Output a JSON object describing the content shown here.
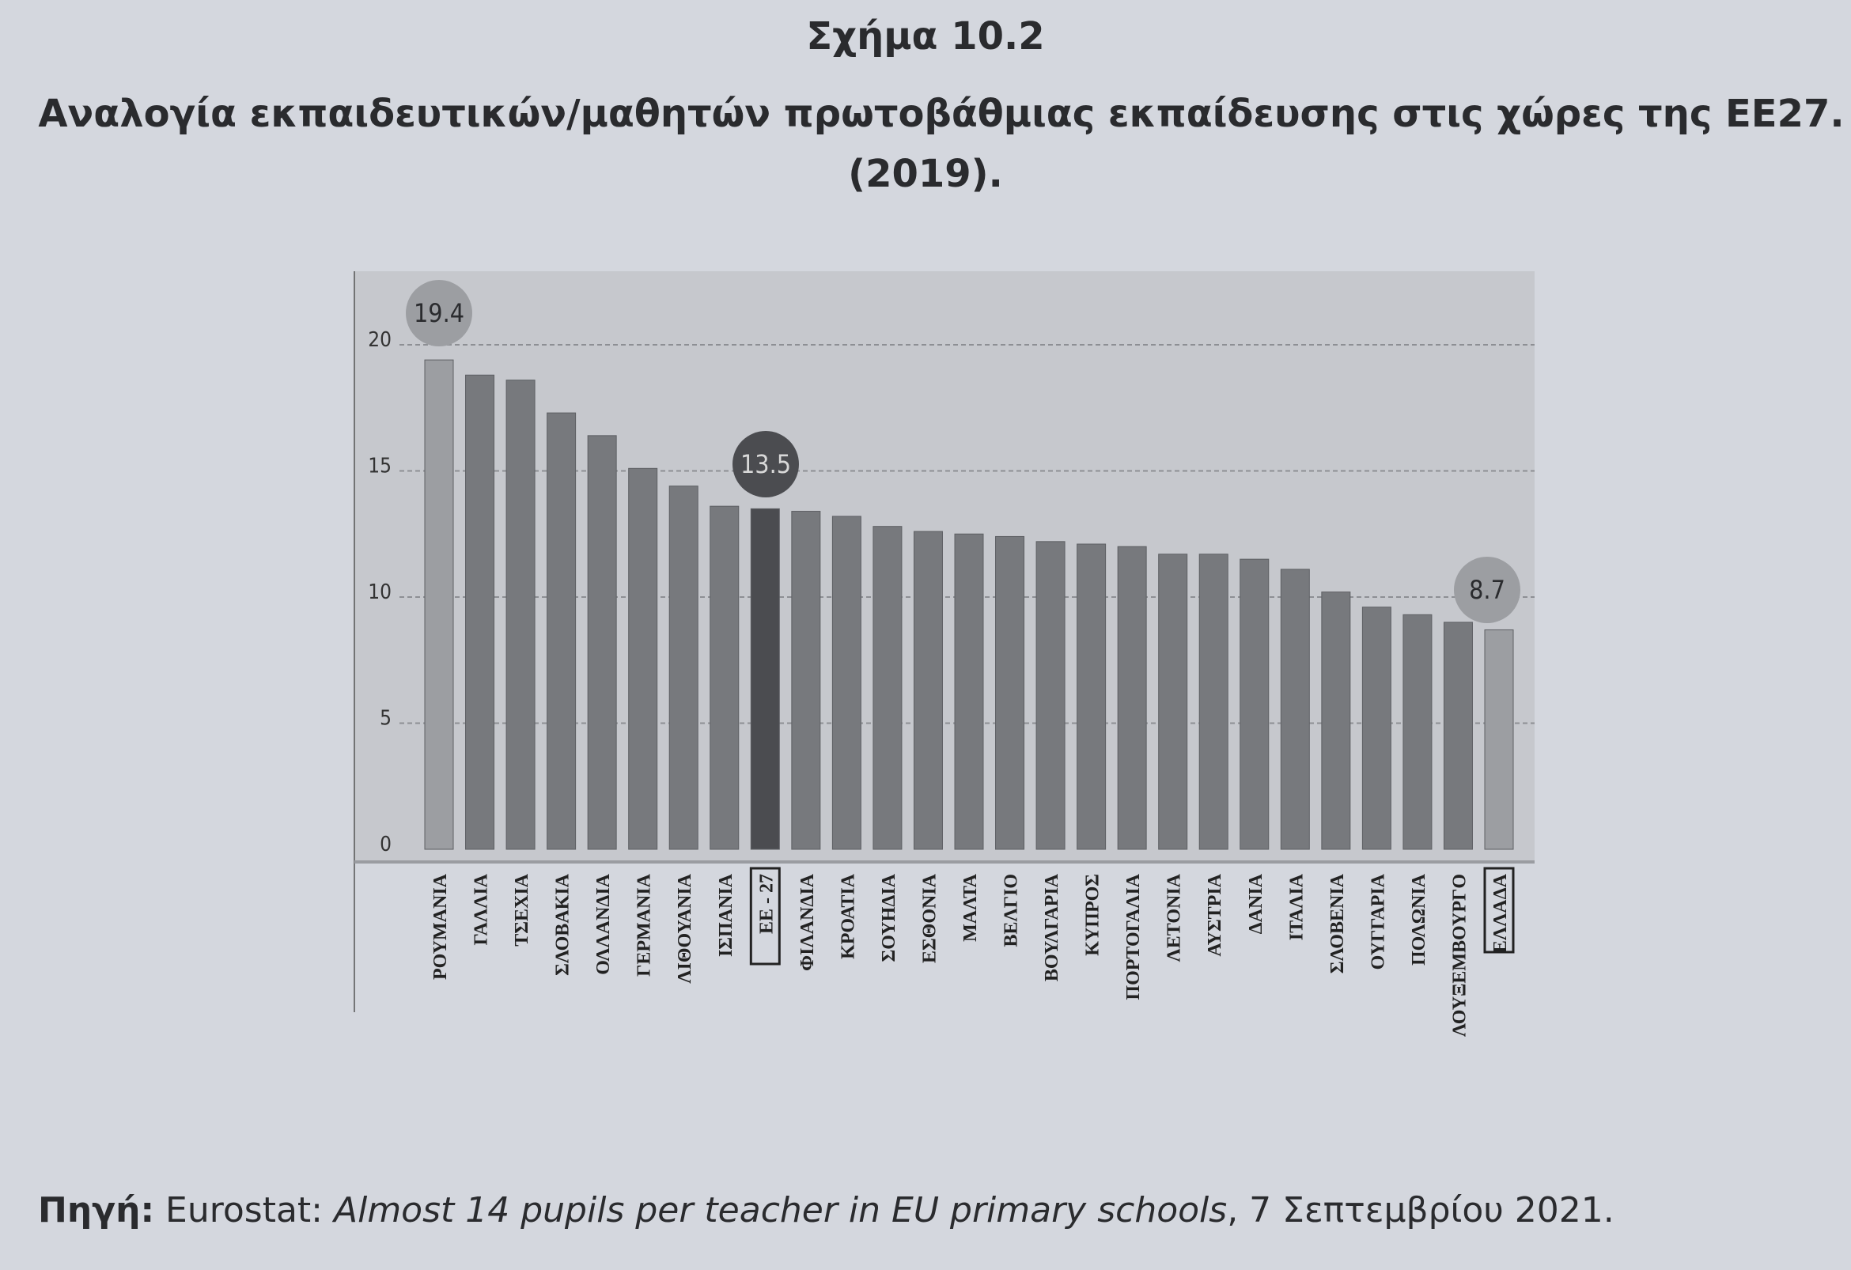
{
  "figure_label": "Σχήμα 10.2",
  "title_line1": "Αναλογία εκπαιδευτικών/μαθητών πρωτοβάθμιας εκπαίδευσης στις χώρες της ΕΕ27.",
  "title_line2": "(2019).",
  "source": {
    "label": "Πηγή:",
    "publisher": "Eurostat:",
    "article": "Almost 14 pupils per teacher in EU primary schools",
    "date": ", 7 Σεπτεμβρίου 2021."
  },
  "colors": {
    "panel": "#c6c8cd",
    "bar": "#77797d",
    "highlight": "#9c9ea2",
    "eu": "#4b4c50"
  },
  "chart_data": {
    "type": "bar",
    "title": "Αναλογία εκπαιδευτικών/μαθητών πρωτοβάθμιας εκπαίδευσης στις χώρες της ΕΕ27. (2019).",
    "xlabel": "",
    "ylabel": "",
    "ylim": [
      0,
      21
    ],
    "yticks": [
      0,
      5,
      10,
      15,
      20
    ],
    "grid": true,
    "categories": [
      "ΡΟΥΜΑΝΙΑ",
      "ΓΑΛΛΙΑ",
      "ΤΣΕΧΙΑ",
      "ΣΛΟΒΑΚΙΑ",
      "ΟΛΛΑΝΔΙΑ",
      "ΓΕΡΜΑΝΙΑ",
      "ΛΙΘΟΥΑΝΙΑ",
      "ΙΣΠΑΝΙΑ",
      "ΕΕ - 27",
      "ΦΙΛΑΝΔΙΑ",
      "ΚΡΟΑΤΙΑ",
      "ΣΟΥΗΔΙΑ",
      "ΕΣΘΟΝΙΑ",
      "ΜΑΛΤΑ",
      "ΒΕΛΓΙΟ",
      "ΒΟΥΛΓΑΡΙΑ",
      "ΚΥΠΡΟΣ",
      "ΠΟΡΤΟΓΑΛΙΑ",
      "ΛΕΤΟΝΙΑ",
      "ΑΥΣΤΡΙΑ",
      "ΔΑΝΙΑ",
      "ΙΤΑΛΙΑ",
      "ΣΛΟΒΕΝΙΑ",
      "ΟΥΓΓΑΡΙΑ",
      "ΠΟΛΩΝΙΑ",
      "ΛΟΥΞΕΜΒΟΥΡΓΟ",
      "ΕΛΛΑΔΑ"
    ],
    "values": [
      19.4,
      18.8,
      18.6,
      17.3,
      16.4,
      15.1,
      14.4,
      13.6,
      13.5,
      13.4,
      13.2,
      12.8,
      12.6,
      12.5,
      12.4,
      12.2,
      12.1,
      12.0,
      11.7,
      11.7,
      11.5,
      11.1,
      10.2,
      9.6,
      9.3,
      9.0,
      8.7
    ],
    "data_labels": [
      {
        "category": "ΡΟΥΜΑΝΙΑ",
        "text": "19.4"
      },
      {
        "category": "ΕΕ - 27",
        "text": "13.5"
      },
      {
        "category": "ΕΛΛΑΔΑ",
        "text": "8.7"
      }
    ],
    "boxed_categories": [
      "ΕΕ - 27",
      "ΕΛΛΑΔΑ"
    ]
  }
}
